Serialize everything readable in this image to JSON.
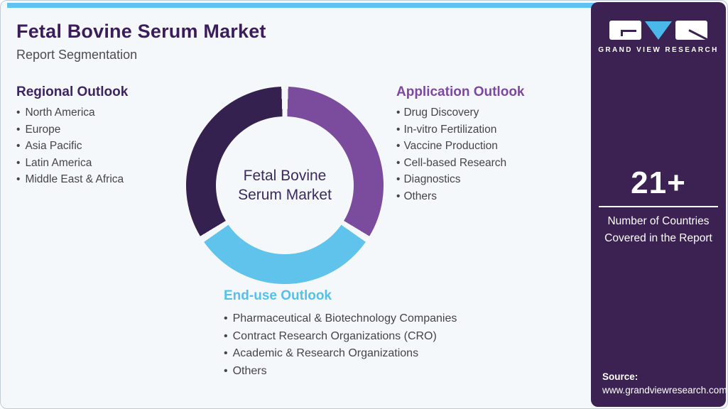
{
  "header": {
    "title": "Fetal Bovine Serum Market",
    "subtitle": "Report Segmentation"
  },
  "sections": {
    "regional": {
      "heading": "Regional Outlook",
      "items": [
        "North America",
        "Europe",
        "Asia Pacific",
        "Latin America",
        "Middle East & Africa"
      ]
    },
    "application": {
      "heading": "Application Outlook",
      "items": [
        "Drug Discovery",
        "In-vitro Fertilization",
        "Vaccine Production",
        "Cell-based Research",
        "Diagnostics",
        "Others"
      ]
    },
    "end_use": {
      "heading": "End-use Outlook",
      "items": [
        "Pharmaceutical & Biotechnology Companies",
        "Contract Research Organizations (CRO)",
        "Academic & Research Organizations",
        "Others"
      ]
    }
  },
  "donut": {
    "center_label": "Fetal Bovine Serum Market",
    "gap_color": "#f4f8fb",
    "segments": [
      {
        "name": "Application Outlook",
        "color": "#7b4b9e",
        "start": 2,
        "end": 121
      },
      {
        "name": "End-use Outlook",
        "color": "#60c3ec",
        "start": 125,
        "end": 235
      },
      {
        "name": "Regional Outlook",
        "color": "#35214f",
        "start": 239,
        "end": 358
      }
    ]
  },
  "sidebar": {
    "brand": "GRAND VIEW RESEARCH",
    "stat_value": "21+",
    "stat_label": "Number of Countries Covered in the Report",
    "source_label": "Source:",
    "source_url": "www.grandviewresearch.com"
  },
  "colors": {
    "accent_bar": "#5ec4ef",
    "sidebar_bg": "#3c2153",
    "title_text": "#3b1d5c",
    "regional_heading": "#3d2462",
    "application_heading": "#7d48a3",
    "end_use_heading": "#55c0ea",
    "body_text": "#454449",
    "logo_v_blue": "#4ab8e8"
  }
}
